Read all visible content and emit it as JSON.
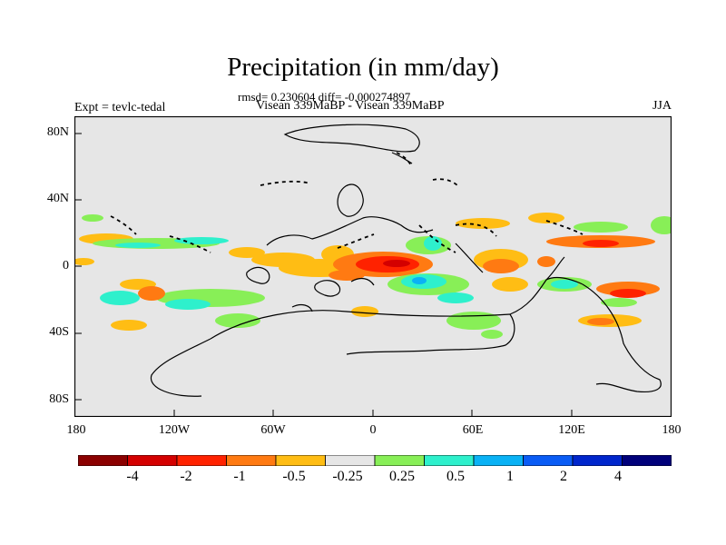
{
  "title": "Precipitation (in mm/day)",
  "stats": "rmsd= 0.230604 diff= -0.000274897",
  "subtitle": "Visean 339MaBP - Visean 339MaBP",
  "expt": "Expt = tevlc-tedal",
  "season": "JJA",
  "map": {
    "projection": "cylindrical equidistant",
    "lon_range": [
      -180,
      180
    ],
    "lat_range": [
      -90,
      90
    ],
    "background_color": "#e6e6e6",
    "y_tick_labels": [
      "80N",
      "40N",
      "0",
      "40S",
      "80S"
    ],
    "x_tick_labels": [
      "180",
      "120W",
      "60W",
      "0",
      "60E",
      "120E",
      "180"
    ]
  },
  "colorbar": {
    "colors": [
      "#8b0000",
      "#d40000",
      "#ff2200",
      "#ff7a12",
      "#ffbd14",
      "#e6e6e6",
      "#88ef57",
      "#2ef0cc",
      "#0ab2f5",
      "#0a5cf5",
      "#0026cc",
      "#00007a"
    ],
    "labels": [
      "-4",
      "-2",
      "-1",
      "-0.5",
      "-0.25",
      "0.25",
      "0.5",
      "1",
      "2",
      "4"
    ]
  }
}
